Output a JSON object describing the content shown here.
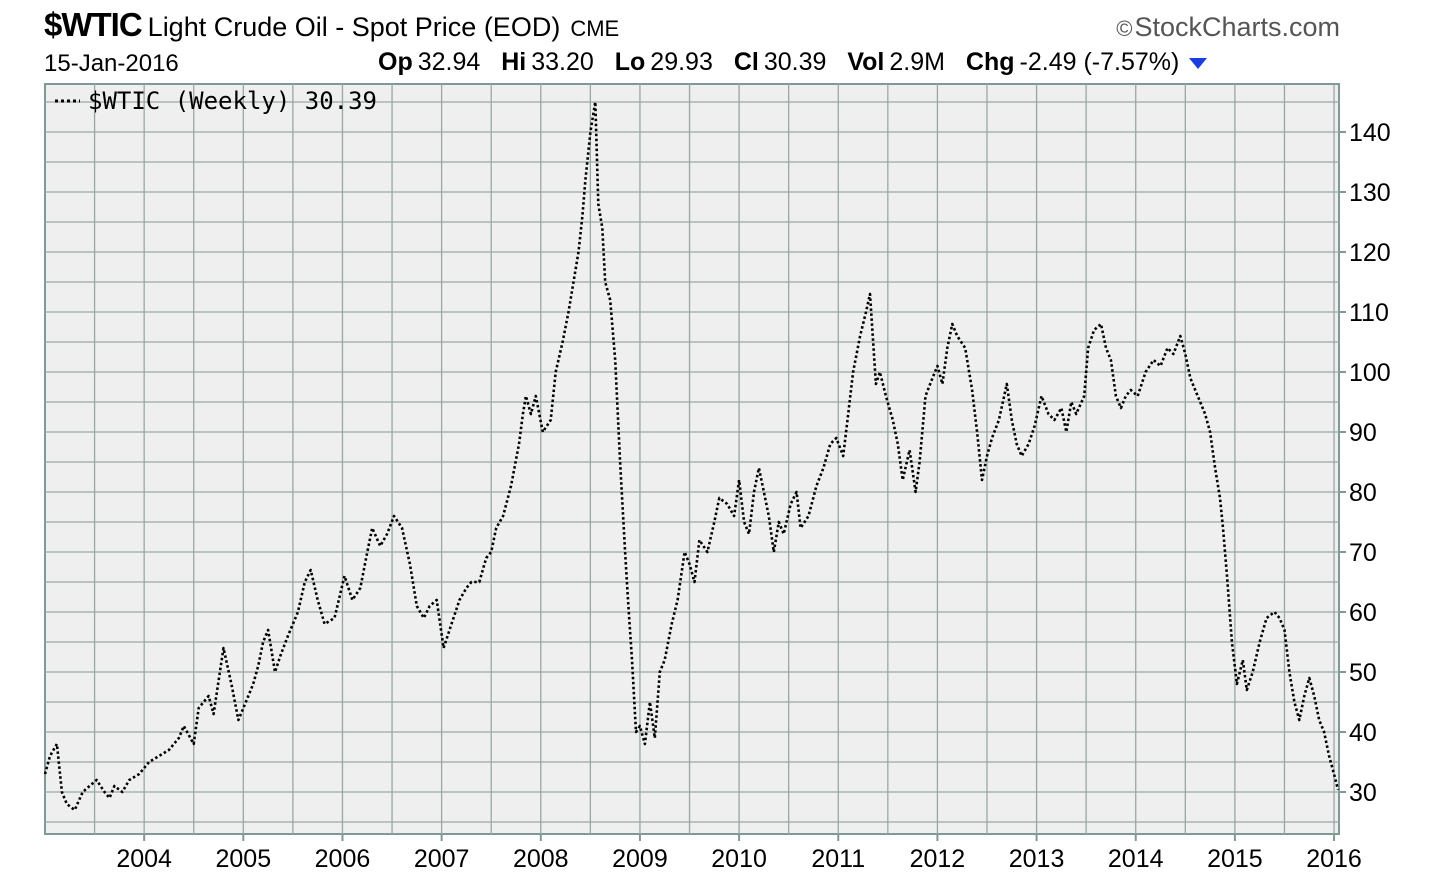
{
  "header": {
    "symbol": "$WTIC",
    "name": "Light Crude Oil - Spot Price (EOD)",
    "exchange": "CME",
    "brand": "StockCharts.com",
    "brand_symbol": "©",
    "date": "15-Jan-2016",
    "stats": [
      {
        "label": "Op",
        "value": "32.94"
      },
      {
        "label": "Hi",
        "value": "33.20"
      },
      {
        "label": "Lo",
        "value": "29.93"
      },
      {
        "label": "Cl",
        "value": "30.39"
      },
      {
        "label": "Vol",
        "value": "2.9M"
      },
      {
        "label": "Chg",
        "value": "-2.49 (-7.57%)"
      }
    ],
    "chg_direction_icon": "triangle-down-icon",
    "chg_color": "#1a3ee0"
  },
  "chart_data": {
    "type": "line",
    "line_style": "dotted",
    "legend": "$WTIC (Weekly) 30.39",
    "legend_placement": "top-left",
    "grid": true,
    "y_axis_side": "right",
    "ylim": [
      23,
      148
    ],
    "xlim": [
      2003.0,
      2016.05
    ],
    "yticks": [
      30,
      40,
      50,
      60,
      70,
      80,
      90,
      100,
      110,
      120,
      130,
      140
    ],
    "xticks": [
      {
        "value": 2004,
        "label": "2004"
      },
      {
        "value": 2005,
        "label": "2005"
      },
      {
        "value": 2006,
        "label": "2006"
      },
      {
        "value": 2007,
        "label": "2007"
      },
      {
        "value": 2008,
        "label": "2008"
      },
      {
        "value": 2009,
        "label": "2009"
      },
      {
        "value": 2010,
        "label": "2010"
      },
      {
        "value": 2011,
        "label": "2011"
      },
      {
        "value": 2012,
        "label": "2012"
      },
      {
        "value": 2013,
        "label": "2013"
      },
      {
        "value": 2014,
        "label": "2014"
      },
      {
        "value": 2015,
        "label": "2015"
      },
      {
        "value": 2016,
        "label": "2016"
      }
    ],
    "series": [
      {
        "points": [
          [
            2003.0,
            33
          ],
          [
            2003.05,
            36
          ],
          [
            2003.12,
            38
          ],
          [
            2003.17,
            30
          ],
          [
            2003.22,
            28
          ],
          [
            2003.3,
            27
          ],
          [
            2003.38,
            30
          ],
          [
            2003.45,
            31
          ],
          [
            2003.52,
            32
          ],
          [
            2003.6,
            30
          ],
          [
            2003.65,
            29
          ],
          [
            2003.7,
            31
          ],
          [
            2003.78,
            30
          ],
          [
            2003.85,
            32
          ],
          [
            2003.95,
            33
          ],
          [
            2004.05,
            35
          ],
          [
            2004.15,
            36
          ],
          [
            2004.25,
            37
          ],
          [
            2004.35,
            39
          ],
          [
            2004.4,
            41
          ],
          [
            2004.5,
            38
          ],
          [
            2004.55,
            44
          ],
          [
            2004.65,
            46
          ],
          [
            2004.7,
            43
          ],
          [
            2004.8,
            54
          ],
          [
            2004.88,
            48
          ],
          [
            2004.95,
            42
          ],
          [
            2005.05,
            46
          ],
          [
            2005.1,
            48
          ],
          [
            2005.15,
            51
          ],
          [
            2005.2,
            55
          ],
          [
            2005.25,
            57
          ],
          [
            2005.32,
            50
          ],
          [
            2005.38,
            53
          ],
          [
            2005.45,
            56
          ],
          [
            2005.55,
            60
          ],
          [
            2005.62,
            65
          ],
          [
            2005.68,
            67
          ],
          [
            2005.75,
            62
          ],
          [
            2005.82,
            58
          ],
          [
            2005.92,
            59
          ],
          [
            2006.02,
            66
          ],
          [
            2006.1,
            62
          ],
          [
            2006.18,
            64
          ],
          [
            2006.25,
            70
          ],
          [
            2006.3,
            74
          ],
          [
            2006.38,
            71
          ],
          [
            2006.45,
            73
          ],
          [
            2006.52,
            76
          ],
          [
            2006.6,
            74
          ],
          [
            2006.68,
            68
          ],
          [
            2006.75,
            61
          ],
          [
            2006.82,
            59
          ],
          [
            2006.88,
            61
          ],
          [
            2006.95,
            62
          ],
          [
            2007.02,
            54
          ],
          [
            2007.1,
            58
          ],
          [
            2007.18,
            62
          ],
          [
            2007.25,
            64
          ],
          [
            2007.3,
            65
          ],
          [
            2007.38,
            65
          ],
          [
            2007.45,
            69
          ],
          [
            2007.5,
            70
          ],
          [
            2007.55,
            74
          ],
          [
            2007.62,
            76
          ],
          [
            2007.7,
            81
          ],
          [
            2007.78,
            88
          ],
          [
            2007.82,
            93
          ],
          [
            2007.85,
            96
          ],
          [
            2007.9,
            93
          ],
          [
            2007.95,
            96
          ],
          [
            2008.02,
            90
          ],
          [
            2008.1,
            92
          ],
          [
            2008.15,
            100
          ],
          [
            2008.22,
            105
          ],
          [
            2008.28,
            110
          ],
          [
            2008.32,
            114
          ],
          [
            2008.38,
            120
          ],
          [
            2008.42,
            126
          ],
          [
            2008.45,
            132
          ],
          [
            2008.5,
            140
          ],
          [
            2008.55,
            145
          ],
          [
            2008.58,
            128
          ],
          [
            2008.62,
            124
          ],
          [
            2008.65,
            115
          ],
          [
            2008.7,
            112
          ],
          [
            2008.75,
            102
          ],
          [
            2008.8,
            85
          ],
          [
            2008.85,
            70
          ],
          [
            2008.88,
            62
          ],
          [
            2008.92,
            52
          ],
          [
            2008.96,
            40
          ],
          [
            2009.0,
            41
          ],
          [
            2009.05,
            38
          ],
          [
            2009.1,
            45
          ],
          [
            2009.15,
            39
          ],
          [
            2009.2,
            50
          ],
          [
            2009.25,
            52
          ],
          [
            2009.32,
            58
          ],
          [
            2009.38,
            62
          ],
          [
            2009.45,
            70
          ],
          [
            2009.5,
            68
          ],
          [
            2009.55,
            65
          ],
          [
            2009.6,
            72
          ],
          [
            2009.68,
            70
          ],
          [
            2009.75,
            75
          ],
          [
            2009.8,
            79
          ],
          [
            2009.88,
            78
          ],
          [
            2009.95,
            76
          ],
          [
            2010.0,
            82
          ],
          [
            2010.05,
            75
          ],
          [
            2010.1,
            73
          ],
          [
            2010.15,
            80
          ],
          [
            2010.2,
            84
          ],
          [
            2010.25,
            80
          ],
          [
            2010.3,
            76
          ],
          [
            2010.35,
            70
          ],
          [
            2010.4,
            75
          ],
          [
            2010.45,
            73
          ],
          [
            2010.52,
            78
          ],
          [
            2010.58,
            80
          ],
          [
            2010.62,
            74
          ],
          [
            2010.7,
            76
          ],
          [
            2010.78,
            81
          ],
          [
            2010.85,
            84
          ],
          [
            2010.92,
            88
          ],
          [
            2010.98,
            89
          ],
          [
            2011.05,
            86
          ],
          [
            2011.1,
            93
          ],
          [
            2011.15,
            100
          ],
          [
            2011.22,
            106
          ],
          [
            2011.28,
            110
          ],
          [
            2011.32,
            113
          ],
          [
            2011.38,
            98
          ],
          [
            2011.42,
            100
          ],
          [
            2011.48,
            96
          ],
          [
            2011.55,
            92
          ],
          [
            2011.6,
            88
          ],
          [
            2011.65,
            82
          ],
          [
            2011.72,
            87
          ],
          [
            2011.78,
            80
          ],
          [
            2011.82,
            85
          ],
          [
            2011.88,
            96
          ],
          [
            2011.95,
            99
          ],
          [
            2012.0,
            101
          ],
          [
            2012.05,
            98
          ],
          [
            2012.1,
            104
          ],
          [
            2012.15,
            108
          ],
          [
            2012.2,
            106
          ],
          [
            2012.28,
            104
          ],
          [
            2012.35,
            97
          ],
          [
            2012.4,
            90
          ],
          [
            2012.45,
            82
          ],
          [
            2012.5,
            86
          ],
          [
            2012.55,
            89
          ],
          [
            2012.62,
            92
          ],
          [
            2012.7,
            98
          ],
          [
            2012.75,
            92
          ],
          [
            2012.8,
            88
          ],
          [
            2012.85,
            86
          ],
          [
            2012.92,
            88
          ],
          [
            2012.98,
            91
          ],
          [
            2013.05,
            96
          ],
          [
            2013.12,
            93
          ],
          [
            2013.18,
            92
          ],
          [
            2013.25,
            94
          ],
          [
            2013.3,
            90
          ],
          [
            2013.35,
            95
          ],
          [
            2013.4,
            93
          ],
          [
            2013.48,
            96
          ],
          [
            2013.52,
            104
          ],
          [
            2013.58,
            107
          ],
          [
            2013.65,
            108
          ],
          [
            2013.7,
            104
          ],
          [
            2013.75,
            102
          ],
          [
            2013.8,
            96
          ],
          [
            2013.85,
            94
          ],
          [
            2013.9,
            96
          ],
          [
            2013.95,
            97
          ],
          [
            2014.02,
            96
          ],
          [
            2014.1,
            100
          ],
          [
            2014.18,
            102
          ],
          [
            2014.25,
            101
          ],
          [
            2014.32,
            104
          ],
          [
            2014.38,
            103
          ],
          [
            2014.45,
            106
          ],
          [
            2014.5,
            103
          ],
          [
            2014.55,
            99
          ],
          [
            2014.6,
            97
          ],
          [
            2014.65,
            95
          ],
          [
            2014.7,
            93
          ],
          [
            2014.75,
            90
          ],
          [
            2014.8,
            84
          ],
          [
            2014.85,
            79
          ],
          [
            2014.88,
            74
          ],
          [
            2014.92,
            66
          ],
          [
            2014.97,
            55
          ],
          [
            2015.02,
            48
          ],
          [
            2015.08,
            52
          ],
          [
            2015.12,
            47
          ],
          [
            2015.18,
            50
          ],
          [
            2015.25,
            55
          ],
          [
            2015.32,
            59
          ],
          [
            2015.4,
            60
          ],
          [
            2015.45,
            59
          ],
          [
            2015.5,
            57
          ],
          [
            2015.55,
            50
          ],
          [
            2015.6,
            45
          ],
          [
            2015.65,
            42
          ],
          [
            2015.7,
            46
          ],
          [
            2015.75,
            49
          ],
          [
            2015.8,
            46
          ],
          [
            2015.85,
            42
          ],
          [
            2015.9,
            40
          ],
          [
            2015.95,
            36
          ],
          [
            2016.0,
            33
          ],
          [
            2016.04,
            30.39
          ]
        ]
      }
    ]
  }
}
